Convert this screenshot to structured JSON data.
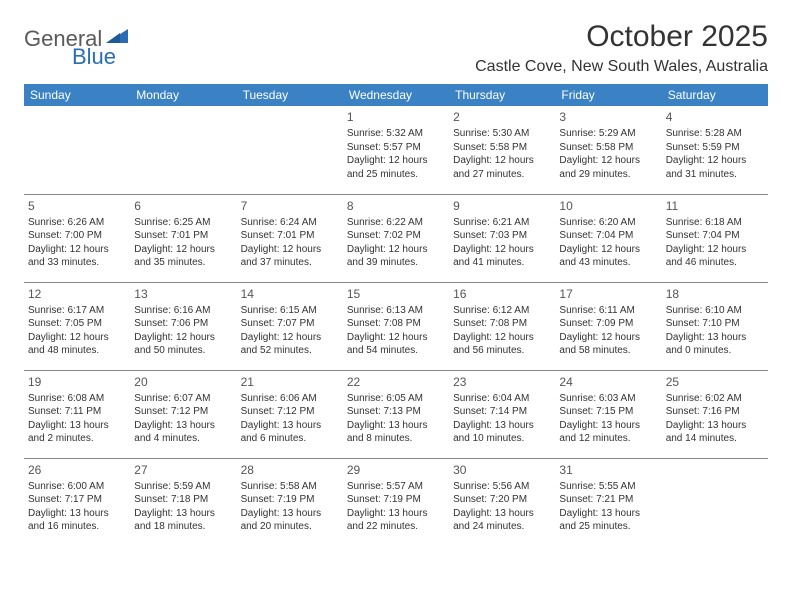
{
  "brand": {
    "part1": "General",
    "part2": "Blue"
  },
  "title": "October 2025",
  "location": "Castle Cove, New South Wales, Australia",
  "colors": {
    "header_bg": "#3b82c4",
    "header_text": "#ffffff",
    "border": "#888888",
    "text": "#333333",
    "logo_gray": "#5a5a5a",
    "logo_blue": "#2a6db5",
    "page_bg": "#ffffff"
  },
  "dayHeaders": [
    "Sunday",
    "Monday",
    "Tuesday",
    "Wednesday",
    "Thursday",
    "Friday",
    "Saturday"
  ],
  "weeks": [
    [
      null,
      null,
      null,
      {
        "n": "1",
        "sr": "5:32 AM",
        "ss": "5:57 PM",
        "dl": "12 hours and 25 minutes."
      },
      {
        "n": "2",
        "sr": "5:30 AM",
        "ss": "5:58 PM",
        "dl": "12 hours and 27 minutes."
      },
      {
        "n": "3",
        "sr": "5:29 AM",
        "ss": "5:58 PM",
        "dl": "12 hours and 29 minutes."
      },
      {
        "n": "4",
        "sr": "5:28 AM",
        "ss": "5:59 PM",
        "dl": "12 hours and 31 minutes."
      }
    ],
    [
      {
        "n": "5",
        "sr": "6:26 AM",
        "ss": "7:00 PM",
        "dl": "12 hours and 33 minutes."
      },
      {
        "n": "6",
        "sr": "6:25 AM",
        "ss": "7:01 PM",
        "dl": "12 hours and 35 minutes."
      },
      {
        "n": "7",
        "sr": "6:24 AM",
        "ss": "7:01 PM",
        "dl": "12 hours and 37 minutes."
      },
      {
        "n": "8",
        "sr": "6:22 AM",
        "ss": "7:02 PM",
        "dl": "12 hours and 39 minutes."
      },
      {
        "n": "9",
        "sr": "6:21 AM",
        "ss": "7:03 PM",
        "dl": "12 hours and 41 minutes."
      },
      {
        "n": "10",
        "sr": "6:20 AM",
        "ss": "7:04 PM",
        "dl": "12 hours and 43 minutes."
      },
      {
        "n": "11",
        "sr": "6:18 AM",
        "ss": "7:04 PM",
        "dl": "12 hours and 46 minutes."
      }
    ],
    [
      {
        "n": "12",
        "sr": "6:17 AM",
        "ss": "7:05 PM",
        "dl": "12 hours and 48 minutes."
      },
      {
        "n": "13",
        "sr": "6:16 AM",
        "ss": "7:06 PM",
        "dl": "12 hours and 50 minutes."
      },
      {
        "n": "14",
        "sr": "6:15 AM",
        "ss": "7:07 PM",
        "dl": "12 hours and 52 minutes."
      },
      {
        "n": "15",
        "sr": "6:13 AM",
        "ss": "7:08 PM",
        "dl": "12 hours and 54 minutes."
      },
      {
        "n": "16",
        "sr": "6:12 AM",
        "ss": "7:08 PM",
        "dl": "12 hours and 56 minutes."
      },
      {
        "n": "17",
        "sr": "6:11 AM",
        "ss": "7:09 PM",
        "dl": "12 hours and 58 minutes."
      },
      {
        "n": "18",
        "sr": "6:10 AM",
        "ss": "7:10 PM",
        "dl": "13 hours and 0 minutes."
      }
    ],
    [
      {
        "n": "19",
        "sr": "6:08 AM",
        "ss": "7:11 PM",
        "dl": "13 hours and 2 minutes."
      },
      {
        "n": "20",
        "sr": "6:07 AM",
        "ss": "7:12 PM",
        "dl": "13 hours and 4 minutes."
      },
      {
        "n": "21",
        "sr": "6:06 AM",
        "ss": "7:12 PM",
        "dl": "13 hours and 6 minutes."
      },
      {
        "n": "22",
        "sr": "6:05 AM",
        "ss": "7:13 PM",
        "dl": "13 hours and 8 minutes."
      },
      {
        "n": "23",
        "sr": "6:04 AM",
        "ss": "7:14 PM",
        "dl": "13 hours and 10 minutes."
      },
      {
        "n": "24",
        "sr": "6:03 AM",
        "ss": "7:15 PM",
        "dl": "13 hours and 12 minutes."
      },
      {
        "n": "25",
        "sr": "6:02 AM",
        "ss": "7:16 PM",
        "dl": "13 hours and 14 minutes."
      }
    ],
    [
      {
        "n": "26",
        "sr": "6:00 AM",
        "ss": "7:17 PM",
        "dl": "13 hours and 16 minutes."
      },
      {
        "n": "27",
        "sr": "5:59 AM",
        "ss": "7:18 PM",
        "dl": "13 hours and 18 minutes."
      },
      {
        "n": "28",
        "sr": "5:58 AM",
        "ss": "7:19 PM",
        "dl": "13 hours and 20 minutes."
      },
      {
        "n": "29",
        "sr": "5:57 AM",
        "ss": "7:19 PM",
        "dl": "13 hours and 22 minutes."
      },
      {
        "n": "30",
        "sr": "5:56 AM",
        "ss": "7:20 PM",
        "dl": "13 hours and 24 minutes."
      },
      {
        "n": "31",
        "sr": "5:55 AM",
        "ss": "7:21 PM",
        "dl": "13 hours and 25 minutes."
      },
      null
    ]
  ],
  "labels": {
    "sunrise": "Sunrise:",
    "sunset": "Sunset:",
    "daylight": "Daylight:"
  }
}
